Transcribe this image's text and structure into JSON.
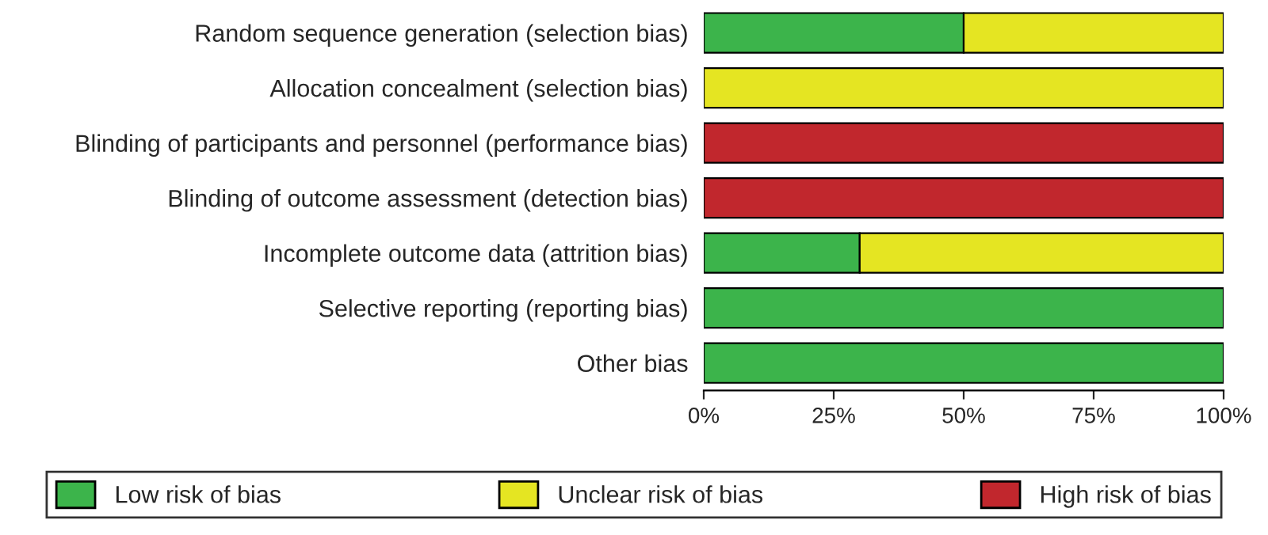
{
  "chart_data": {
    "type": "bar",
    "orientation": "horizontal",
    "stacked": true,
    "categories": [
      "Random sequence generation (selection bias)",
      "Allocation concealment (selection bias)",
      "Blinding of participants and personnel (performance bias)",
      "Blinding of outcome assessment (detection bias)",
      "Incomplete outcome data (attrition bias)",
      "Selective reporting (reporting bias)",
      "Other bias"
    ],
    "series": [
      {
        "name": "Low risk of bias",
        "color": "#3cb44b",
        "values": [
          50,
          0,
          0,
          0,
          30,
          100,
          100
        ]
      },
      {
        "name": "Unclear risk of bias",
        "color": "#e5e522",
        "values": [
          50,
          100,
          0,
          0,
          70,
          0,
          0
        ]
      },
      {
        "name": "High risk of bias",
        "color": "#c1272d",
        "values": [
          0,
          0,
          100,
          100,
          0,
          0,
          0
        ]
      }
    ],
    "xlim": [
      0,
      100
    ],
    "xticks": [
      {
        "value": 0,
        "label": "0%"
      },
      {
        "value": 25,
        "label": "25%"
      },
      {
        "value": 50,
        "label": "50%"
      },
      {
        "value": 75,
        "label": "75%"
      },
      {
        "value": 100,
        "label": "100%"
      }
    ],
    "grid": false,
    "legend": "bottom"
  }
}
